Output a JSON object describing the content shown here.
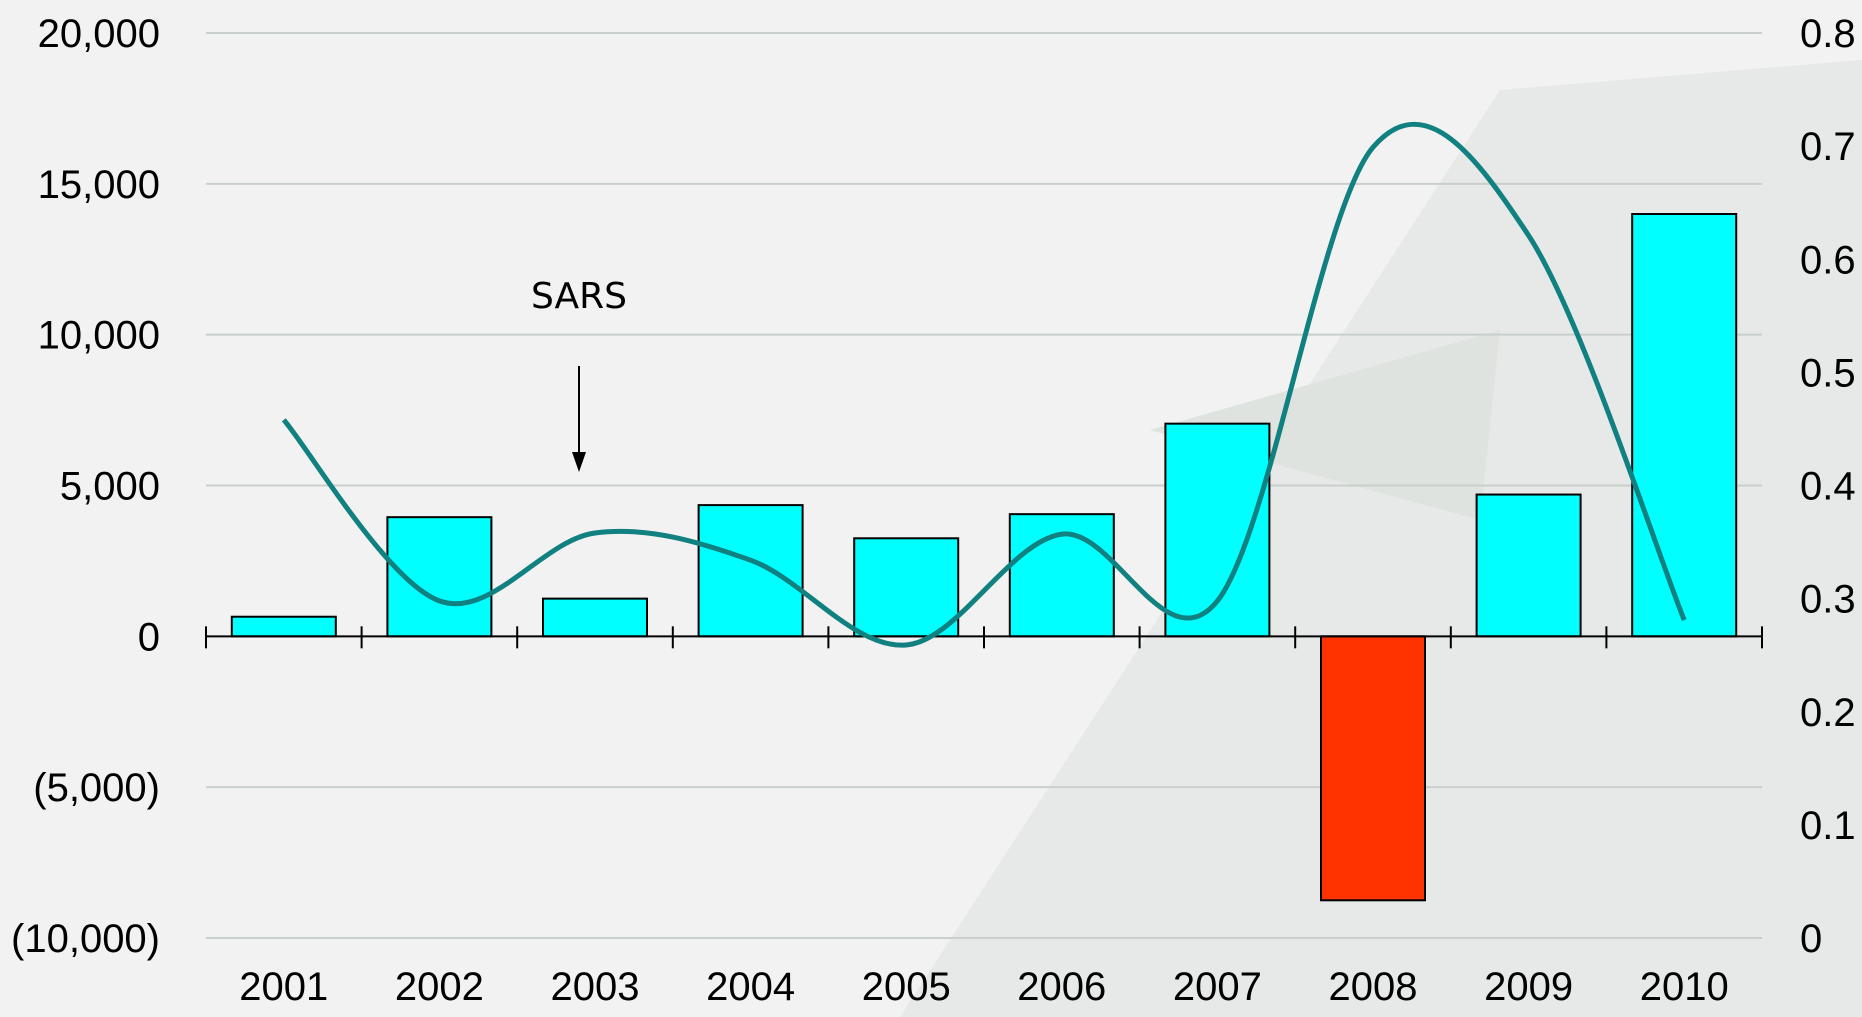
{
  "chart_data": {
    "type": "bar",
    "categories": [
      "2001",
      "2002",
      "2003",
      "2004",
      "2005",
      "2006",
      "2007",
      "2008",
      "2009",
      "2010"
    ],
    "series": [
      {
        "values": [
          650,
          3950,
          1250,
          4350,
          3250,
          4050,
          7050,
          -8750,
          4700,
          14000
        ],
        "axis": "left",
        "type": "bar"
      },
      {
        "values": [
          0.458,
          0.298,
          0.358,
          0.334,
          0.259,
          0.357,
          0.298,
          0.699,
          0.621,
          0.281
        ],
        "axis": "right",
        "type": "line",
        "smooth": true
      }
    ],
    "colors": {
      "positive_bar": "#00ffff",
      "negative_bar": "#ff3300",
      "line": "#108080",
      "grid": "#c9cfcb"
    },
    "y_left": {
      "min": -10000,
      "max": 20000,
      "ticks": [
        20000,
        15000,
        10000,
        5000,
        0,
        -5000,
        -10000
      ],
      "tick_labels": [
        "20,000",
        "15,000",
        "10,000",
        "5,000",
        "0",
        "(5,000)",
        "(10,000)"
      ]
    },
    "y_right": {
      "min": 0,
      "max": 0.8,
      "ticks": [
        0.8,
        0.7,
        0.6,
        0.5,
        0.4,
        0.3,
        0.2,
        0.1,
        0
      ],
      "tick_labels": [
        "0.8",
        "0.7",
        "0.6",
        "0.5",
        "0.4",
        "0.3",
        "0.2",
        "0.1",
        "0"
      ]
    },
    "annotations": [
      {
        "text": "SARS",
        "category": "2003",
        "arrow": "down"
      }
    ],
    "grid": true,
    "legend": "none"
  }
}
